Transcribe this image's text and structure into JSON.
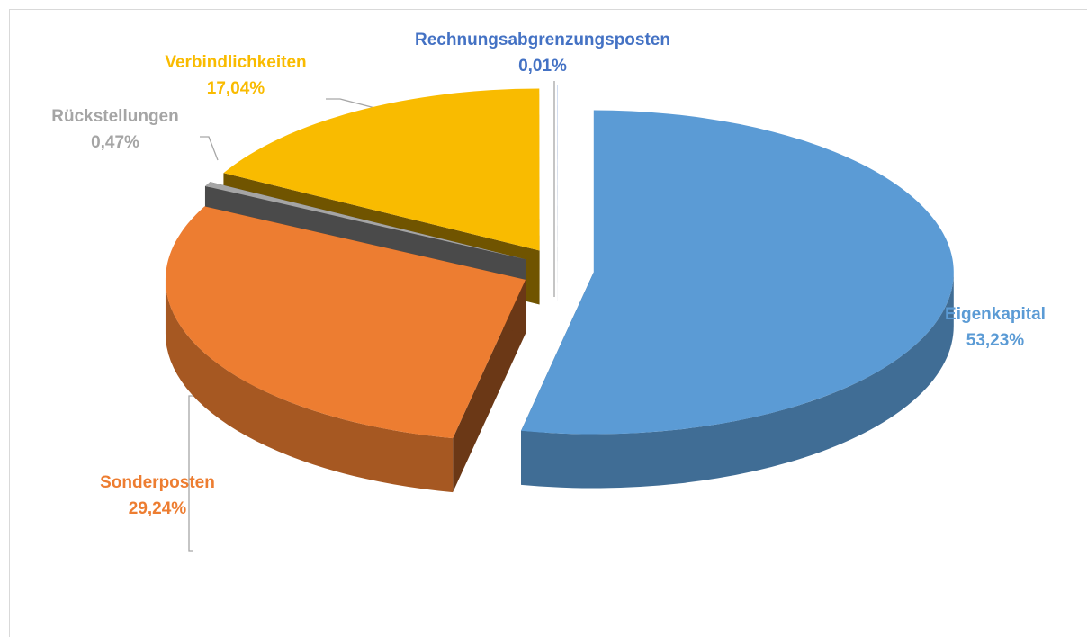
{
  "chart_data": {
    "type": "pie",
    "categories": [
      "Eigenkapital",
      "Sonderposten",
      "Rückstellungen",
      "Verbindlichkeiten",
      "Rechnungsabgrenzungsposten"
    ],
    "values": [
      53.23,
      29.24,
      0.47,
      17.04,
      0.01
    ],
    "value_labels": [
      "53,23%",
      "29,24%",
      "0,47%",
      "17,04%",
      "0,01%"
    ],
    "colors": [
      "#5b9bd5",
      "#ed7d31",
      "#a5a5a5",
      "#f9bb00",
      "#4472c4"
    ]
  }
}
